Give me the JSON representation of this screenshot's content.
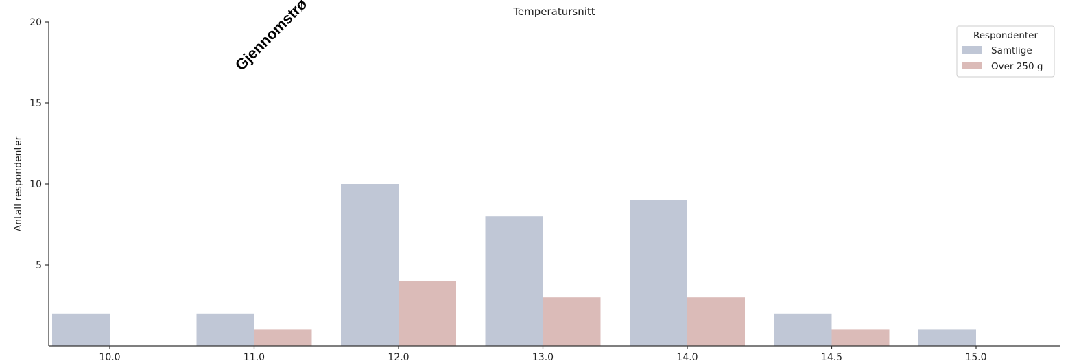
{
  "overlay": {
    "rotated_text": "Gjennomstrø"
  },
  "chart_data": {
    "type": "bar",
    "title": "Temperatursnitt",
    "xlabel": "",
    "ylabel": "Antall respondenter",
    "categories": [
      "10.0",
      "11.0",
      "12.0",
      "13.0",
      "14.0",
      "14.5",
      "15.0"
    ],
    "series": [
      {
        "name": "Samtlige",
        "color": "#c0c7d6",
        "values": [
          2,
          2,
          10,
          8,
          9,
          2,
          1
        ]
      },
      {
        "name": "Over 250 g",
        "color": "#dbbbb8",
        "values": [
          0,
          1,
          4,
          3,
          3,
          1,
          0
        ]
      }
    ],
    "ylim": [
      0,
      20
    ],
    "yticks": [
      5,
      10,
      15,
      20
    ],
    "grid": false,
    "legend": {
      "title": "Respondenter",
      "placement": "top-right"
    }
  }
}
